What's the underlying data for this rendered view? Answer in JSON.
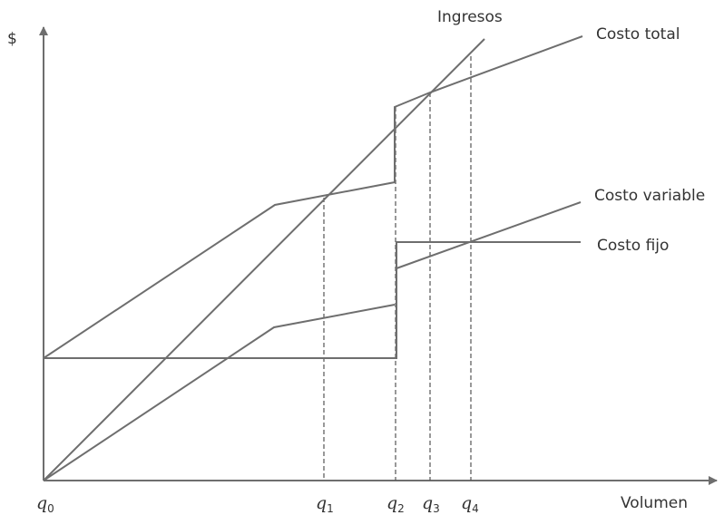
{
  "y_axis_label": "$",
  "x_axis_label": "Volumen",
  "curves": {
    "ingresos": "Ingresos",
    "costo_total": "Costo total",
    "costo_variable": "Costo variable",
    "costo_fijo": "Costo fijo"
  },
  "ticks": [
    {
      "main": "q",
      "sub": "0"
    },
    {
      "main": "q",
      "sub": "1"
    },
    {
      "main": "q",
      "sub": "2"
    },
    {
      "main": "q",
      "sub": "3"
    },
    {
      "main": "q",
      "sub": "4"
    }
  ],
  "colors": {
    "lines": "#6e6e6e",
    "text": "#333333"
  }
}
